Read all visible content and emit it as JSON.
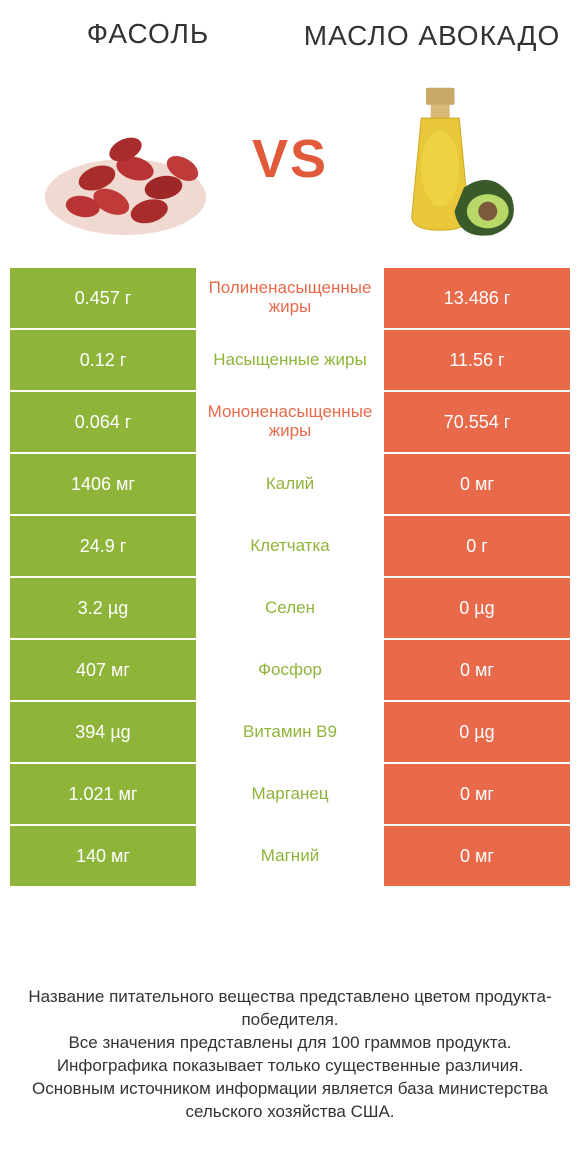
{
  "header": {
    "left_title": "Фасоль",
    "right_title": "Масло авокадо",
    "vs_label": "VS"
  },
  "colors": {
    "left_bg": "#8fb43a",
    "right_bg": "#e86a4a",
    "left_text": "#8fb43a",
    "right_text": "#e86a4a",
    "cell_text": "#ffffff",
    "vs_color": "#e15a3a"
  },
  "type": "comparison-table",
  "rows": [
    {
      "left": "0.457 г",
      "label": "Полиненасыщенные жиры",
      "right": "13.486 г",
      "winner": "right"
    },
    {
      "left": "0.12 г",
      "label": "Насыщенные жиры",
      "right": "11.56 г",
      "winner": "left"
    },
    {
      "left": "0.064 г",
      "label": "Мононенасыщенные жиры",
      "right": "70.554 г",
      "winner": "right"
    },
    {
      "left": "1406 мг",
      "label": "Калий",
      "right": "0 мг",
      "winner": "left"
    },
    {
      "left": "24.9 г",
      "label": "Клетчатка",
      "right": "0 г",
      "winner": "left"
    },
    {
      "left": "3.2 µg",
      "label": "Селен",
      "right": "0 µg",
      "winner": "left"
    },
    {
      "left": "407 мг",
      "label": "Фосфор",
      "right": "0 мг",
      "winner": "left"
    },
    {
      "left": "394 µg",
      "label": "Витамин B9",
      "right": "0 µg",
      "winner": "left"
    },
    {
      "left": "1.021 мг",
      "label": "Марганец",
      "right": "0 мг",
      "winner": "left"
    },
    {
      "left": "140 мг",
      "label": "Магний",
      "right": "0 мг",
      "winner": "left"
    }
  ],
  "footer": {
    "line1": "Название питательного вещества представлено цветом продукта-победителя.",
    "line2": "Все значения представлены для 100 граммов продукта.",
    "line3": "Инфографика показывает только существенные различия.",
    "line4": "Основным источником информации является база министерства сельского хозяйства США."
  }
}
